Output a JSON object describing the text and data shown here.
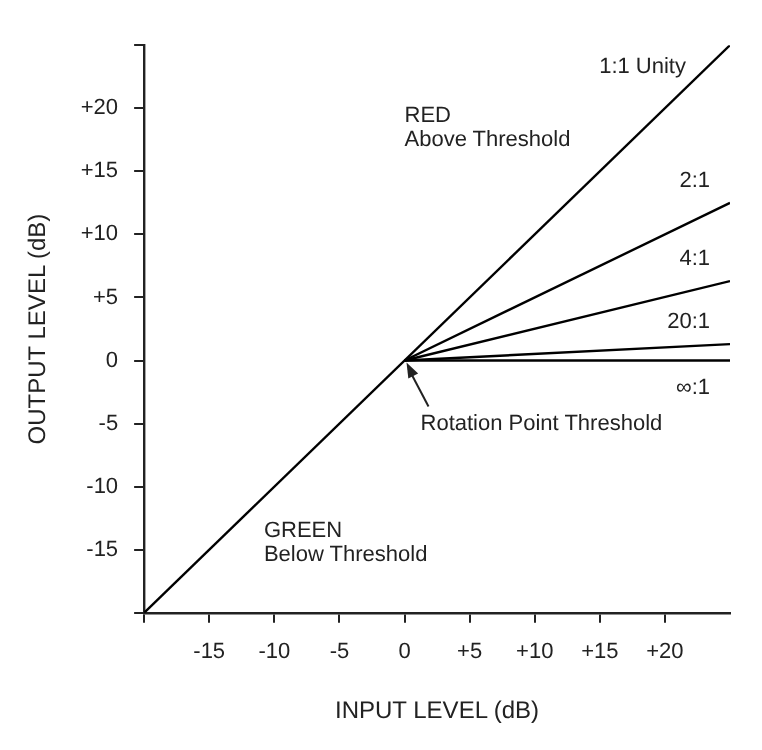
{
  "chart_data": {
    "type": "line",
    "xlabel": "INPUT LEVEL (dB)",
    "ylabel": "OUTPUT LEVEL (dB)",
    "xlim": [
      -20,
      25
    ],
    "xticks": [
      {
        "value": -20,
        "label": null
      },
      {
        "value": -15,
        "label": "-15"
      },
      {
        "value": -10,
        "label": "-10"
      },
      {
        "value": -5,
        "label": "-5"
      },
      0,
      {
        "value": 5,
        "label": "+5"
      },
      {
        "value": 10,
        "label": "+10"
      },
      {
        "value": 15,
        "label": "+15"
      },
      {
        "value": 20,
        "label": "+20"
      }
    ],
    "ylim": [
      -20,
      25
    ],
    "yticks": [
      {
        "value": -20,
        "label": null
      },
      {
        "value": -15,
        "label": "-15"
      },
      {
        "value": -10,
        "label": "-10"
      },
      {
        "value": -5,
        "label": "-5"
      },
      0,
      {
        "value": 5,
        "label": "+5"
      },
      {
        "value": 10,
        "label": "+10"
      },
      {
        "value": 15,
        "label": "+15"
      },
      {
        "value": 20,
        "label": "+20"
      },
      {
        "value": 25,
        "label": null
      }
    ],
    "grid": false,
    "legend": false,
    "marker": "none",
    "line_style": "solid",
    "series": [
      {
        "name": "1:1 Unity",
        "color": "#000000",
        "x": [
          -20,
          25
        ],
        "values": [
          -20,
          25
        ]
      },
      {
        "name": "2:1",
        "color": "#000000",
        "x": [
          0,
          25
        ],
        "values": [
          0,
          12.5
        ]
      },
      {
        "name": "4:1",
        "color": "#000000",
        "x": [
          0,
          25
        ],
        "values": [
          0,
          6.3
        ]
      },
      {
        "name": "20:1",
        "color": "#000000",
        "x": [
          0,
          25
        ],
        "values": [
          0,
          1.3
        ]
      },
      {
        "name": "∞:1",
        "color": "#000000",
        "x": [
          0,
          25
        ],
        "values": [
          0,
          0
        ]
      }
    ],
    "annotations": [
      "RED\nAbove Threshold",
      "GREEN\nBelow Threshold",
      {
        "text": "Rotation Point Threshold",
        "x": 0,
        "y": 0
      }
    ]
  }
}
